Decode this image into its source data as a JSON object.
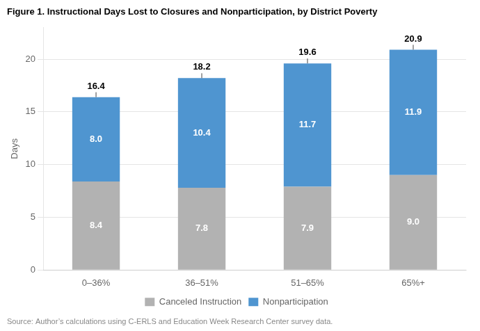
{
  "chart_data": {
    "type": "bar",
    "title": "Figure 1. Instructional Days Lost to Closures and Nonparticipation, by District Poverty",
    "categories": [
      "0–36%",
      "36–51%",
      "51–65%",
      "65%+"
    ],
    "series": [
      {
        "name": "Canceled Instruction",
        "color": "#b2b2b2",
        "values": [
          8.4,
          7.8,
          7.9,
          9.0
        ],
        "value_labels": [
          "8.4",
          "7.8",
          "7.9",
          "9.0"
        ]
      },
      {
        "name": "Nonparticipation",
        "color": "#4f95d0",
        "values": [
          8.0,
          10.4,
          11.7,
          11.9
        ],
        "value_labels": [
          "8.0",
          "10.4",
          "11.7",
          "11.9"
        ]
      }
    ],
    "totals": [
      16.4,
      18.2,
      19.6,
      20.9
    ],
    "ylabel": "Days",
    "ylim": [
      0,
      23
    ],
    "yticks": [
      0,
      5,
      10,
      15,
      20
    ],
    "stacked": true,
    "data_labels": true,
    "grid": true,
    "legend": "bottom",
    "annotations": [
      "Source: Author’s calculations using C-ERLS and Education Week Research Center survey data."
    ]
  }
}
